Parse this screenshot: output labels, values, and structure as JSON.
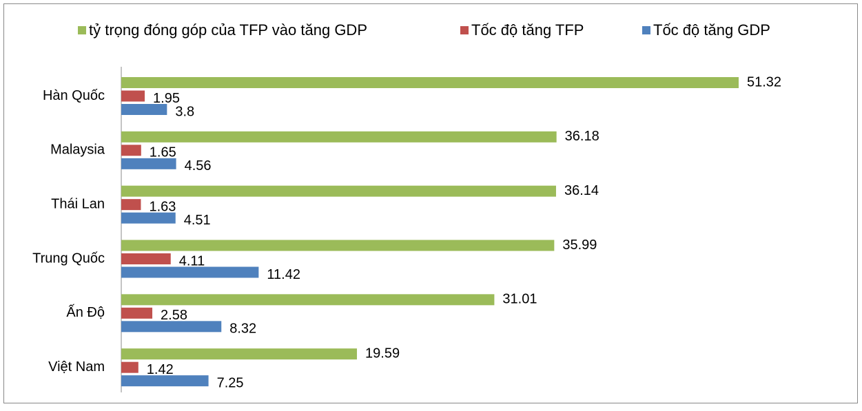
{
  "chart_data": {
    "type": "hbar",
    "categories": [
      "Hàn Quốc",
      "Malaysia",
      "Thái Lan",
      "Trung Quốc",
      "Ấn Độ",
      "Việt Nam"
    ],
    "series": [
      {
        "name": "tỷ trọng đóng góp của TFP vào tăng GDP",
        "color": "#9bbb59",
        "values": [
          51.32,
          36.18,
          36.14,
          35.99,
          31.01,
          19.59
        ]
      },
      {
        "name": "Tốc độ tăng TFP",
        "color": "#c0504d",
        "values": [
          1.95,
          1.65,
          1.63,
          4.11,
          2.58,
          1.42
        ]
      },
      {
        "name": "Tốc độ tăng GDP",
        "color": "#4f81bd",
        "values": [
          3.8,
          4.56,
          4.51,
          11.42,
          8.32,
          7.25
        ]
      }
    ],
    "legend": "top"
  }
}
